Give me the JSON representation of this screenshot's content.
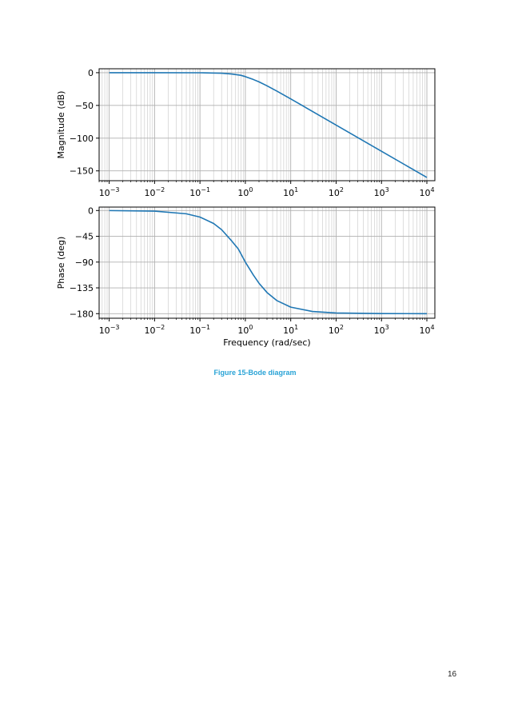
{
  "caption": {
    "text": "Figure 15-Bode diagram",
    "color": "#29a3d6"
  },
  "page_number": "16",
  "chart_data": [
    {
      "type": "line",
      "panel": "magnitude",
      "ylabel": "Magnitude (dB)",
      "xlabel": "",
      "xscale": "log",
      "xlim": [
        0.0006,
        15000
      ],
      "ylim": [
        -165,
        6
      ],
      "ytick_values": [
        0,
        -50,
        -100,
        -150
      ],
      "ytick_labels": [
        "0",
        "−50",
        "−100",
        "−150"
      ],
      "xtick_values": [
        0.001,
        0.01,
        0.1,
        1,
        10,
        100,
        1000,
        10000
      ],
      "xtick_labels": [
        {
          "base": "10",
          "exp": "−3"
        },
        {
          "base": "10",
          "exp": "−2"
        },
        {
          "base": "10",
          "exp": "−1"
        },
        {
          "base": "10",
          "exp": "0"
        },
        {
          "base": "10",
          "exp": "1"
        },
        {
          "base": "10",
          "exp": "2"
        },
        {
          "base": "10",
          "exp": "3"
        },
        {
          "base": "10",
          "exp": "4"
        }
      ],
      "grid": true,
      "line_color": "#1f77b4",
      "series": [
        {
          "x": [
            0.001,
            0.01,
            0.1,
            0.3,
            0.5,
            0.8,
            1,
            1.5,
            2,
            3,
            5,
            10,
            30,
            100,
            1000,
            10000
          ],
          "y": [
            0,
            0,
            -0.1,
            -0.8,
            -2,
            -4,
            -6,
            -10.4,
            -14,
            -20,
            -28.3,
            -40,
            -59.1,
            -80,
            -120,
            -160
          ]
        }
      ]
    },
    {
      "type": "line",
      "panel": "phase",
      "ylabel": "Phase (deg)",
      "xlabel": "Frequency (rad/sec)",
      "xscale": "log",
      "xlim": [
        0.0006,
        15000
      ],
      "ylim": [
        -188,
        6
      ],
      "ytick_values": [
        0,
        -45,
        -90,
        -135,
        -180
      ],
      "ytick_labels": [
        "0",
        "−45",
        "−90",
        "−135",
        "−180"
      ],
      "xtick_values": [
        0.001,
        0.01,
        0.1,
        1,
        10,
        100,
        1000,
        10000
      ],
      "xtick_labels": [
        {
          "base": "10",
          "exp": "−3"
        },
        {
          "base": "10",
          "exp": "−2"
        },
        {
          "base": "10",
          "exp": "−1"
        },
        {
          "base": "10",
          "exp": "0"
        },
        {
          "base": "10",
          "exp": "1"
        },
        {
          "base": "10",
          "exp": "2"
        },
        {
          "base": "10",
          "exp": "3"
        },
        {
          "base": "10",
          "exp": "4"
        }
      ],
      "grid": true,
      "line_color": "#1f77b4",
      "series": [
        {
          "x": [
            0.001,
            0.01,
            0.05,
            0.1,
            0.2,
            0.3,
            0.5,
            0.7,
            1,
            1.5,
            2,
            3,
            5,
            10,
            30,
            100,
            1000,
            10000
          ],
          "y": [
            -0.1,
            -1.1,
            -5.7,
            -11.4,
            -22.6,
            -33.4,
            -53.1,
            -67.1,
            -90,
            -112.6,
            -126.9,
            -143.1,
            -157.4,
            -168.6,
            -176.2,
            -178.9,
            -179.9,
            -180
          ]
        }
      ]
    }
  ]
}
